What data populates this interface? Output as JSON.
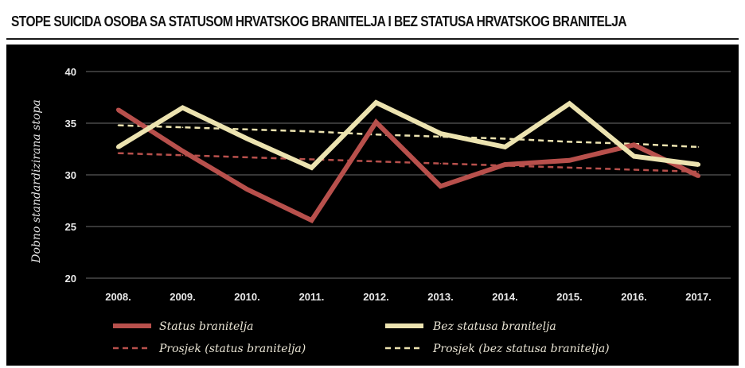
{
  "chart_data": {
    "type": "line",
    "title": "STOPE SUICIDA OSOBA SA STATUSOM HRVATSKOG BRANITELJA I BEZ STATUSA HRVATSKOG BRANITELJA",
    "xlabel": "",
    "ylabel": "Dobno standardizirana stopa",
    "ylim": [
      20,
      40
    ],
    "yticks": [
      "20",
      "25",
      "30",
      "35",
      "40"
    ],
    "categories": [
      "2008.",
      "2009.",
      "2010.",
      "2011.",
      "2012.",
      "2013.",
      "2014.",
      "2015.",
      "2016.",
      "2017."
    ],
    "grid": true,
    "legend_position": "bottom",
    "series": [
      {
        "name": "Status branitelja",
        "color": "#b8504c",
        "style": "solid",
        "values": [
          36.3,
          32.3,
          28.6,
          25.6,
          35.1,
          28.9,
          31.0,
          31.4,
          32.9,
          29.9
        ]
      },
      {
        "name": "Bez statusa branitelja",
        "color": "#ece3b0",
        "style": "solid",
        "values": [
          32.7,
          36.5,
          33.5,
          30.7,
          37.0,
          34.0,
          32.7,
          36.9,
          31.8,
          31.0
        ]
      },
      {
        "name": "Prosjek (status branitelja)",
        "color": "#b8504c",
        "style": "dashed",
        "values": [
          32.1,
          31.9,
          31.7,
          31.5,
          31.3,
          31.1,
          30.9,
          30.7,
          30.5,
          30.3
        ]
      },
      {
        "name": "Prosjek (bez statusa branitelja)",
        "color": "#ece3b0",
        "style": "dashed",
        "values": [
          34.8,
          34.6,
          34.4,
          34.2,
          33.9,
          33.7,
          33.5,
          33.2,
          33.0,
          32.7
        ]
      }
    ]
  }
}
